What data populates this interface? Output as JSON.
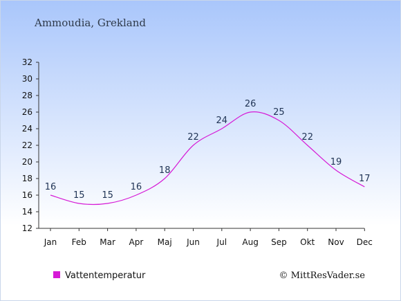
{
  "header": {
    "title": "Ammoudia, Grekland"
  },
  "legend": {
    "label": "Vattentemperatur"
  },
  "credit": {
    "text": "© MittResVader.se"
  },
  "colors": {
    "background_top": "#a9c6fb",
    "background_bottom": "#ffffff",
    "series": "#d61ad6",
    "axis": "#333333",
    "data_label": "#1f3354"
  },
  "chart_data": {
    "type": "line",
    "title": "Ammoudia, Grekland",
    "categories": [
      "Jan",
      "Feb",
      "Mar",
      "Apr",
      "Maj",
      "Jun",
      "Jul",
      "Aug",
      "Sep",
      "Okt",
      "Nov",
      "Dec"
    ],
    "series": [
      {
        "name": "Vattentemperatur",
        "values": [
          16,
          15,
          15,
          16,
          18,
          22,
          24,
          26,
          25,
          22,
          19,
          17
        ]
      }
    ],
    "ylim": [
      12,
      32
    ],
    "yticks": [
      12,
      14,
      16,
      18,
      20,
      22,
      24,
      26,
      28,
      30,
      32
    ],
    "grid": false,
    "legend_position": "bottom-left"
  }
}
